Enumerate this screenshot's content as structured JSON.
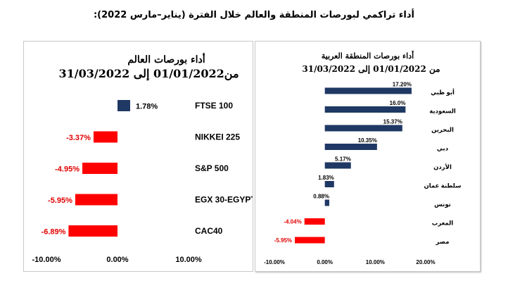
{
  "main_title": "أداء تراكمي لبورصات المنطقة والعالم خلال الفترة (يناير–مارس 2022):",
  "colors": {
    "positive": "#1f3864",
    "negative": "#ff0000",
    "text": "#000000",
    "neg_label": "#e00000"
  },
  "chart_data": [
    {
      "type": "bar",
      "orientation": "horizontal",
      "title_line1": "أداء بورصات العالم",
      "title_line2": "من01/01/2022  إلى 31/03/2022",
      "categories": [
        "FTSE 100",
        "NIKKEI 225",
        "S&P 500",
        "EGX 30-EGYPT",
        "CAC40"
      ],
      "values": [
        1.78,
        -3.37,
        -4.95,
        -5.95,
        -6.89
      ],
      "value_labels": [
        "1.78%",
        "-3.37%",
        "-4.95%",
        "-5.95%",
        "-6.89%"
      ],
      "xlim": [
        -10,
        10
      ],
      "xticks": [
        -10,
        0,
        10
      ],
      "xtick_labels": [
        "-10.00%",
        "0.00%",
        "10.00%"
      ],
      "grid": false,
      "legend": "none"
    },
    {
      "type": "bar",
      "orientation": "horizontal",
      "title_line1": "أداء بورصات المنطقة العربية",
      "title_line2": "من  01/01/2022 إلى 31/03/2022",
      "categories": [
        "أبو ظبي",
        "السعودية",
        "البحرين",
        "دبي",
        "الأردن",
        "سلطنة عمان",
        "تونس",
        "المغرب",
        "مصر"
      ],
      "values": [
        17.2,
        16.0,
        15.37,
        10.35,
        5.17,
        1.83,
        0.88,
        -4.04,
        -5.95
      ],
      "value_labels": [
        "17.20%",
        "16.0%",
        "15.37%",
        "10.35%",
        "5.17%",
        "1.83%",
        "0.88%",
        "-4.04%",
        "-5.95%"
      ],
      "xlim": [
        -10,
        20
      ],
      "xticks": [
        -10,
        0,
        10,
        20
      ],
      "xtick_labels": [
        "-10.00%",
        "0.00%",
        "10.00%",
        "20.00%"
      ],
      "grid": false,
      "legend": "none"
    }
  ]
}
